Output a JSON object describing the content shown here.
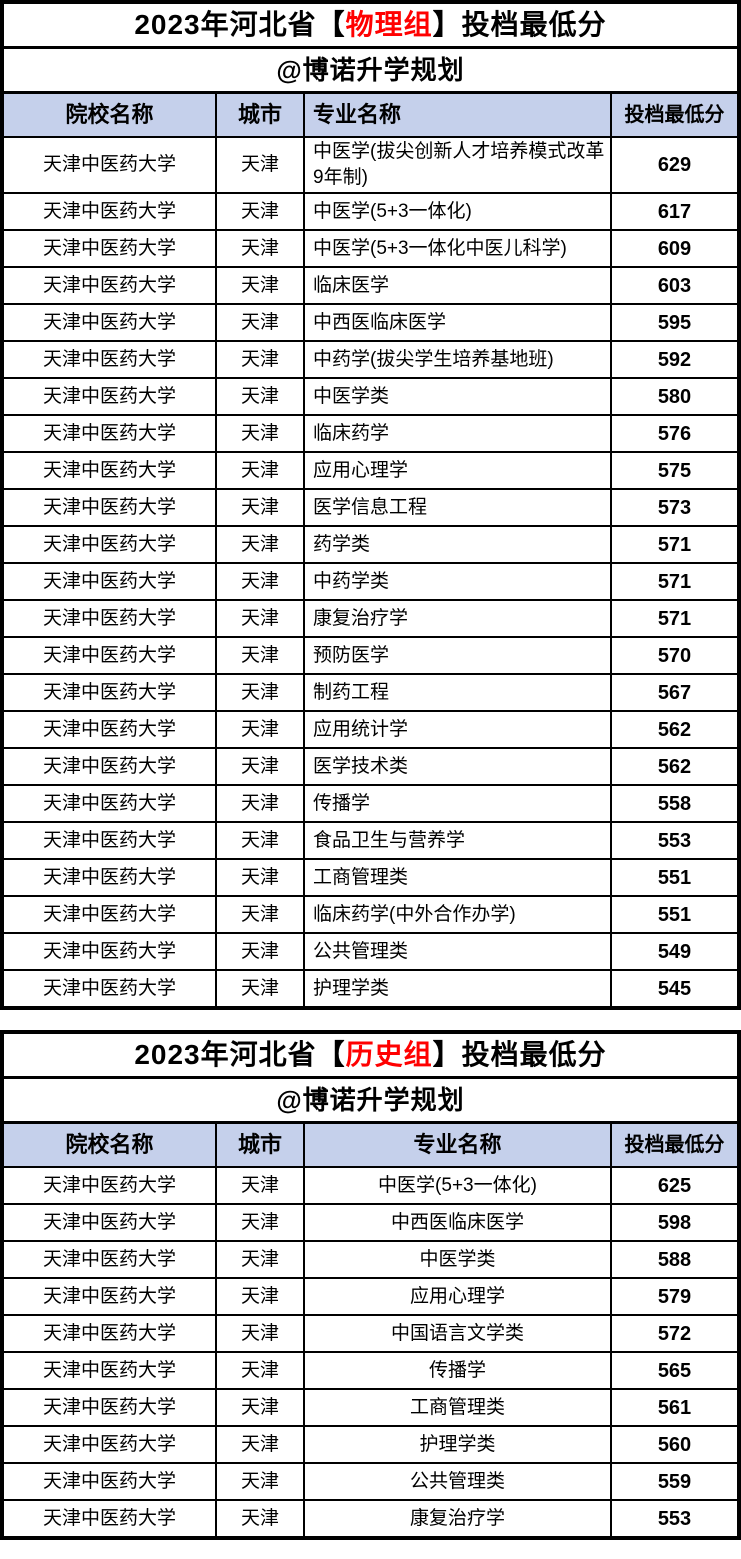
{
  "colors": {
    "header_bg": "#c5d0eb",
    "highlight_red": "#ff0000",
    "border": "#000000"
  },
  "tables": [
    {
      "title_prefix": "2023年河北省",
      "bracket_open": "【",
      "title_group": "物理组",
      "bracket_close": "】",
      "title_suffix": "投档最低分",
      "subtitle": "@博诺升学规划",
      "columns": [
        "院校名称",
        "城市",
        "专业名称",
        "投档最低分"
      ],
      "rows": [
        {
          "school": "天津中医药大学",
          "city": "天津",
          "major": "中医学(拔尖创新人才培养模式改革9年制)",
          "score": 629
        },
        {
          "school": "天津中医药大学",
          "city": "天津",
          "major": "中医学(5+3一体化)",
          "score": 617
        },
        {
          "school": "天津中医药大学",
          "city": "天津",
          "major": "中医学(5+3一体化中医儿科学)",
          "score": 609
        },
        {
          "school": "天津中医药大学",
          "city": "天津",
          "major": "临床医学",
          "score": 603
        },
        {
          "school": "天津中医药大学",
          "city": "天津",
          "major": "中西医临床医学",
          "score": 595
        },
        {
          "school": "天津中医药大学",
          "city": "天津",
          "major": "中药学(拔尖学生培养基地班)",
          "score": 592
        },
        {
          "school": "天津中医药大学",
          "city": "天津",
          "major": "中医学类",
          "score": 580
        },
        {
          "school": "天津中医药大学",
          "city": "天津",
          "major": "临床药学",
          "score": 576
        },
        {
          "school": "天津中医药大学",
          "city": "天津",
          "major": "应用心理学",
          "score": 575
        },
        {
          "school": "天津中医药大学",
          "city": "天津",
          "major": "医学信息工程",
          "score": 573
        },
        {
          "school": "天津中医药大学",
          "city": "天津",
          "major": "药学类",
          "score": 571
        },
        {
          "school": "天津中医药大学",
          "city": "天津",
          "major": "中药学类",
          "score": 571
        },
        {
          "school": "天津中医药大学",
          "city": "天津",
          "major": "康复治疗学",
          "score": 571
        },
        {
          "school": "天津中医药大学",
          "city": "天津",
          "major": "预防医学",
          "score": 570
        },
        {
          "school": "天津中医药大学",
          "city": "天津",
          "major": "制药工程",
          "score": 567
        },
        {
          "school": "天津中医药大学",
          "city": "天津",
          "major": "应用统计学",
          "score": 562
        },
        {
          "school": "天津中医药大学",
          "city": "天津",
          "major": "医学技术类",
          "score": 562
        },
        {
          "school": "天津中医药大学",
          "city": "天津",
          "major": "传播学",
          "score": 558
        },
        {
          "school": "天津中医药大学",
          "city": "天津",
          "major": "食品卫生与营养学",
          "score": 553
        },
        {
          "school": "天津中医药大学",
          "city": "天津",
          "major": "工商管理类",
          "score": 551
        },
        {
          "school": "天津中医药大学",
          "city": "天津",
          "major": "临床药学(中外合作办学)",
          "score": 551
        },
        {
          "school": "天津中医药大学",
          "city": "天津",
          "major": "公共管理类",
          "score": 549
        },
        {
          "school": "天津中医药大学",
          "city": "天津",
          "major": "护理学类",
          "score": 545
        }
      ]
    },
    {
      "title_prefix": "2023年河北省",
      "bracket_open": "【",
      "title_group": "历史组",
      "bracket_close": "】",
      "title_suffix": "投档最低分",
      "subtitle": "@博诺升学规划",
      "columns": [
        "院校名称",
        "城市",
        "专业名称",
        "投档最低分"
      ],
      "rows": [
        {
          "school": "天津中医药大学",
          "city": "天津",
          "major": "中医学(5+3一体化)",
          "score": 625
        },
        {
          "school": "天津中医药大学",
          "city": "天津",
          "major": "中西医临床医学",
          "score": 598
        },
        {
          "school": "天津中医药大学",
          "city": "天津",
          "major": "中医学类",
          "score": 588
        },
        {
          "school": "天津中医药大学",
          "city": "天津",
          "major": "应用心理学",
          "score": 579
        },
        {
          "school": "天津中医药大学",
          "city": "天津",
          "major": "中国语言文学类",
          "score": 572
        },
        {
          "school": "天津中医药大学",
          "city": "天津",
          "major": "传播学",
          "score": 565
        },
        {
          "school": "天津中医药大学",
          "city": "天津",
          "major": "工商管理类",
          "score": 561
        },
        {
          "school": "天津中医药大学",
          "city": "天津",
          "major": "护理学类",
          "score": 560
        },
        {
          "school": "天津中医药大学",
          "city": "天津",
          "major": "公共管理类",
          "score": 559
        },
        {
          "school": "天津中医药大学",
          "city": "天津",
          "major": "康复治疗学",
          "score": 553
        }
      ]
    }
  ]
}
